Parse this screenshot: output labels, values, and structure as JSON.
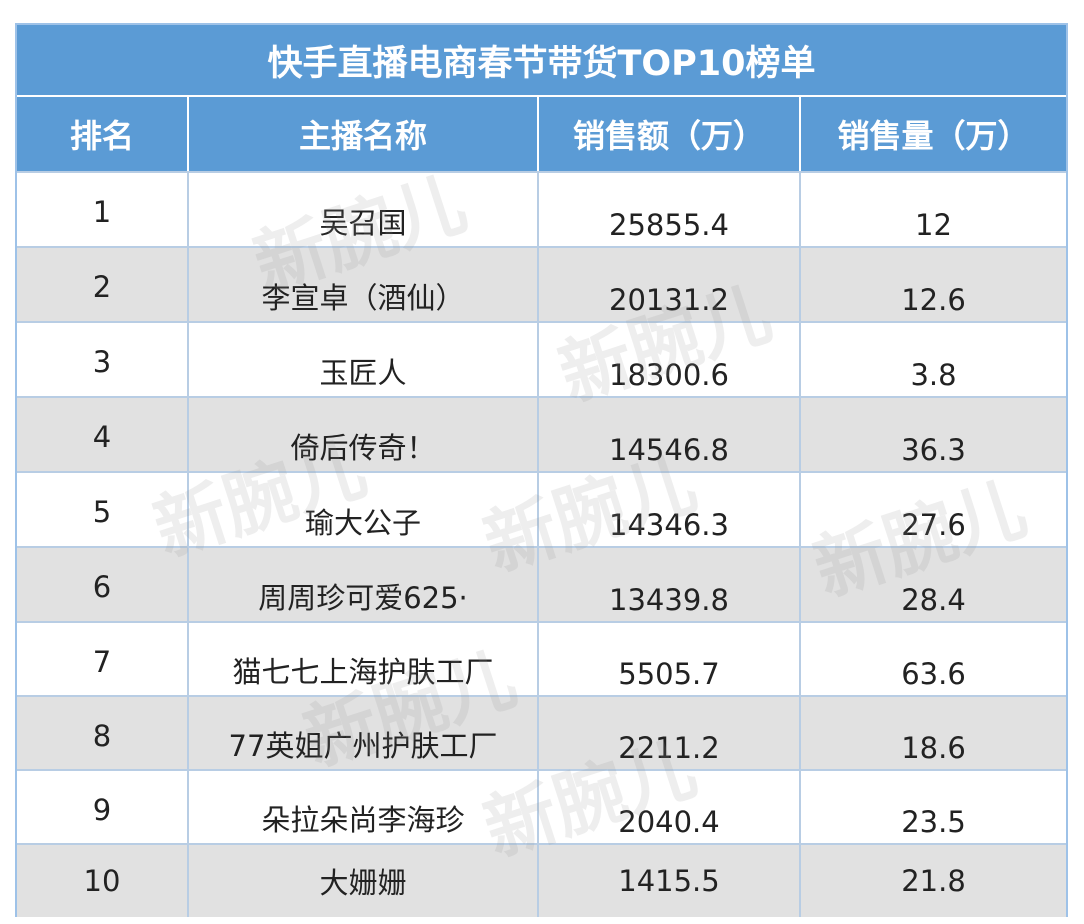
{
  "table": {
    "title": "快手直播电商春节带货TOP10榜单",
    "headers": {
      "rank": "排名",
      "name": "主播名称",
      "sales_amount": "销售额（万）",
      "sales_volume": "销售量（万）"
    },
    "rows": [
      {
        "rank": "1",
        "name": "吴召国",
        "sales_amount": "25855.4",
        "sales_volume": "12"
      },
      {
        "rank": "2",
        "name": "李宣卓（酒仙）",
        "sales_amount": "20131.2",
        "sales_volume": "12.6"
      },
      {
        "rank": "3",
        "name": "玉匠人",
        "sales_amount": "18300.6",
        "sales_volume": "3.8"
      },
      {
        "rank": "4",
        "name": "倚后传奇！",
        "sales_amount": "14546.8",
        "sales_volume": "36.3"
      },
      {
        "rank": "5",
        "name": "瑜大公子",
        "sales_amount": "14346.3",
        "sales_volume": "27.6"
      },
      {
        "rank": "6",
        "name": "周周珍可爱625·",
        "sales_amount": "13439.8",
        "sales_volume": "28.4"
      },
      {
        "rank": "7",
        "name": "猫七七上海护肤工厂",
        "sales_amount": "5505.7",
        "sales_volume": "63.6"
      },
      {
        "rank": "8",
        "name": "77英姐广州护肤工厂",
        "sales_amount": "2211.2",
        "sales_volume": "18.6"
      },
      {
        "rank": "9",
        "name": "朵拉朵尚李海珍",
        "sales_amount": "2040.4",
        "sales_volume": "23.5"
      },
      {
        "rank": "10",
        "name": "大姗姗",
        "sales_amount": "1415.5",
        "sales_volume": "21.8"
      }
    ]
  },
  "watermark": {
    "text": "新腕儿"
  }
}
